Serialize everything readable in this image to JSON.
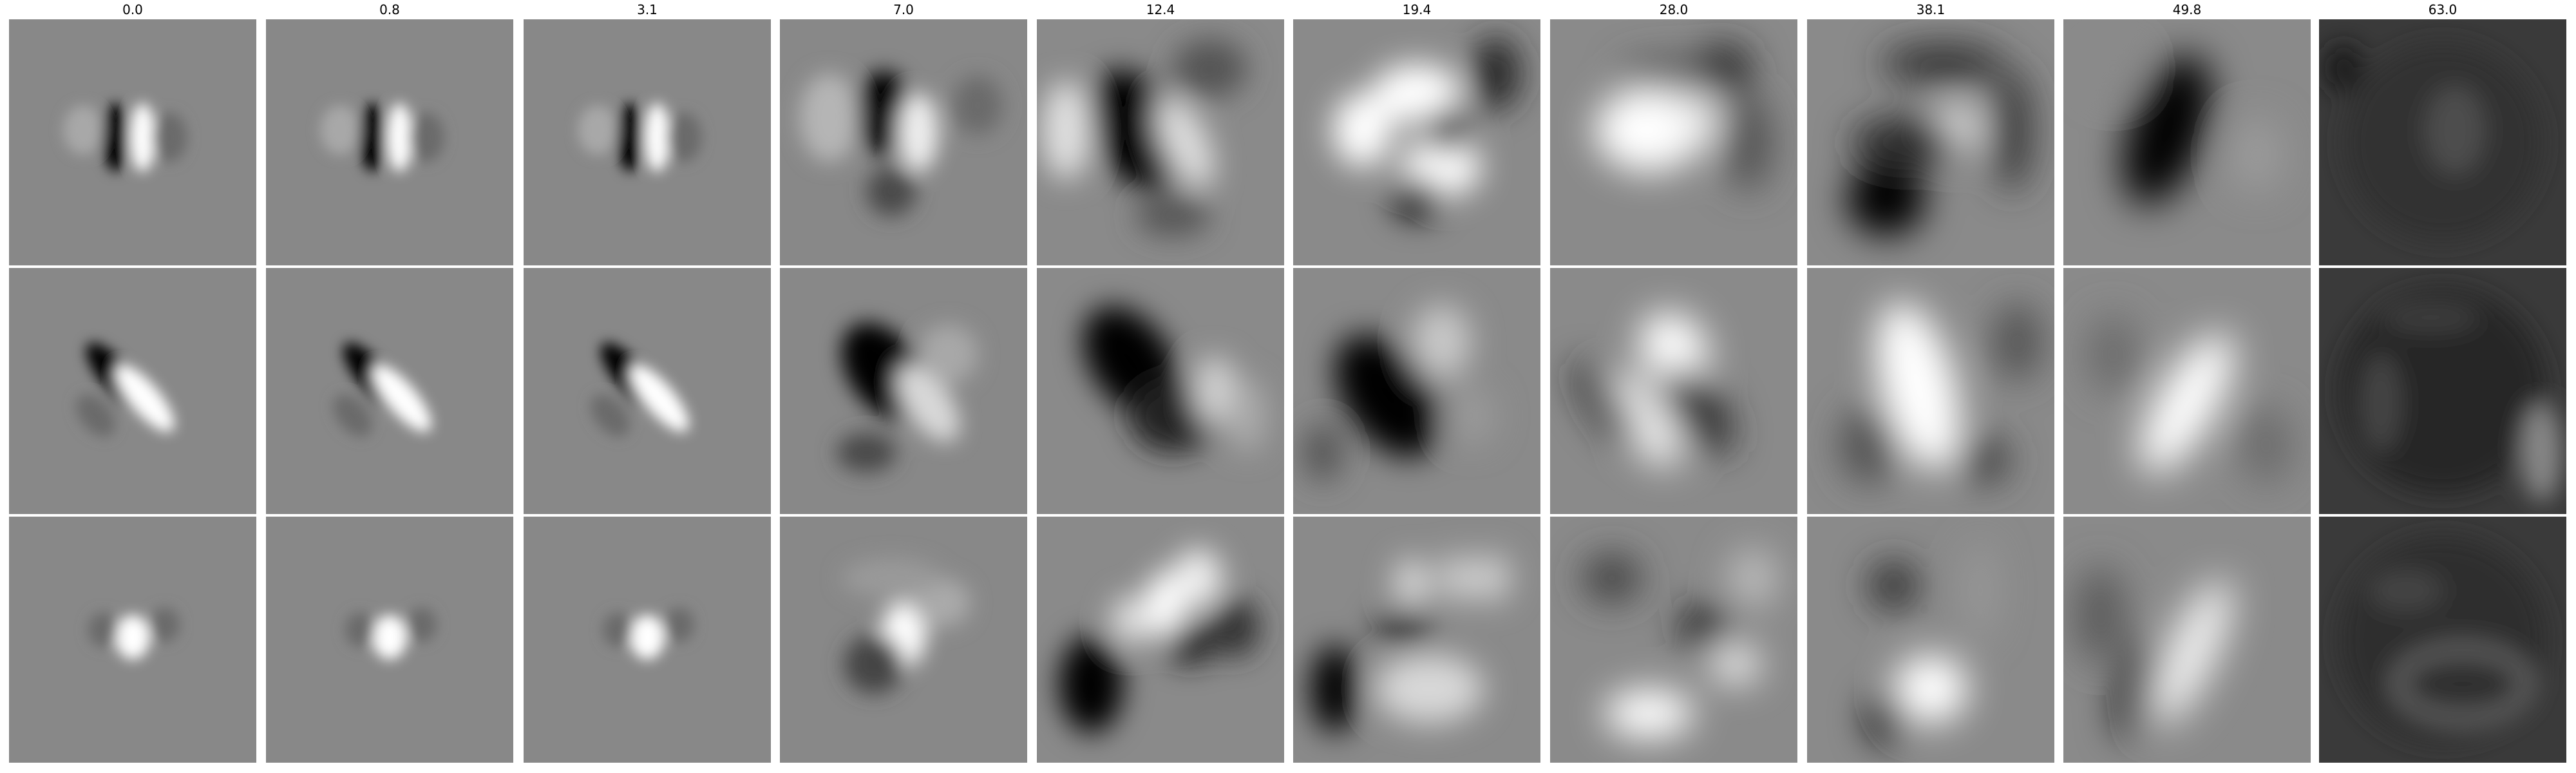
{
  "figure": {
    "columns": [
      "0.0",
      "0.8",
      "3.1",
      "7.0",
      "12.4",
      "19.4",
      "28.0",
      "38.1",
      "49.8",
      "63.0"
    ],
    "rows": 3,
    "colormap": "grayscale"
  }
}
